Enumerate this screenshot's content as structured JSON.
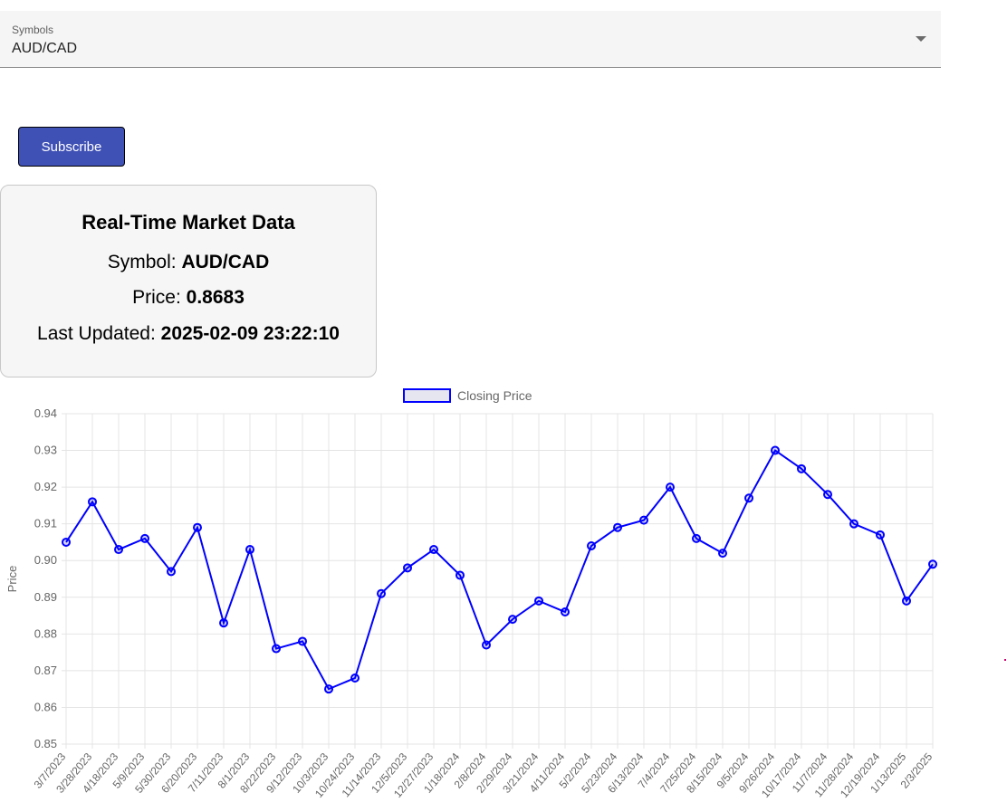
{
  "symbol_select": {
    "label": "Symbols",
    "value": "AUD/CAD"
  },
  "subscribe_label": "Subscribe",
  "market_card": {
    "title": "Real-Time Market Data",
    "symbol_label": "Symbol:",
    "symbol_value": "AUD/CAD",
    "price_label": "Price:",
    "price_value": "0.8683",
    "updated_label": "Last Updated:",
    "updated_value": "2025-02-09 23:22:10"
  },
  "colors": {
    "primary": "#3f51b5",
    "series_line": "#0000ff",
    "legend_fill": "#e6e6f0"
  },
  "chart_data": {
    "type": "line",
    "legend": "Closing Price",
    "ylabel": "Price",
    "xlabel": "",
    "ylim": [
      0.85,
      0.94
    ],
    "y_ticks": [
      "0.85",
      "0.86",
      "0.87",
      "0.88",
      "0.89",
      "0.90",
      "0.91",
      "0.92",
      "0.93",
      "0.94"
    ],
    "x_ticks": [
      "3/7/2023",
      "3/28/2023",
      "4/18/2023",
      "5/9/2023",
      "5/30/2023",
      "6/20/2023",
      "7/11/2023",
      "8/1/2023",
      "8/22/2023",
      "9/12/2023",
      "10/3/2023",
      "10/24/2023",
      "11/14/2023",
      "12/5/2023",
      "12/27/2023",
      "1/18/2024",
      "2/8/2024",
      "2/29/2024",
      "3/21/2024",
      "4/11/2024",
      "5/2/2024",
      "5/23/2024",
      "6/13/2024",
      "7/4/2024",
      "7/25/2024",
      "8/15/2024",
      "9/5/2024",
      "9/26/2024",
      "10/17/2024",
      "11/7/2024",
      "11/28/2024",
      "12/19/2024",
      "1/13/2025",
      "2/3/2025"
    ],
    "grid": true,
    "legend_position": "top",
    "series": [
      {
        "name": "Closing Price",
        "x": [
          "3/7/2023",
          "3/28/2023",
          "4/18/2023",
          "5/9/2023",
          "5/30/2023",
          "6/20/2023",
          "7/11/2023",
          "8/1/2023",
          "8/22/2023",
          "9/12/2023",
          "10/3/2023",
          "10/24/2023",
          "11/14/2023",
          "12/5/2023",
          "12/27/2023",
          "1/18/2024",
          "2/8/2024",
          "2/29/2024",
          "3/21/2024",
          "4/11/2024",
          "5/2/2024",
          "5/23/2024",
          "6/13/2024",
          "7/4/2024",
          "7/25/2024",
          "8/15/2024",
          "9/5/2024",
          "9/26/2024",
          "10/17/2024",
          "11/7/2024",
          "11/28/2024",
          "12/19/2024",
          "1/13/2025",
          "2/3/2025"
        ],
        "values": [
          0.905,
          0.916,
          0.903,
          0.906,
          0.897,
          0.909,
          0.883,
          0.903,
          0.876,
          0.878,
          0.865,
          0.868,
          0.891,
          0.898,
          0.903,
          0.896,
          0.877,
          0.884,
          0.889,
          0.886,
          0.904,
          0.909,
          0.911,
          0.92,
          0.906,
          0.902,
          0.917,
          0.93,
          0.925,
          0.918,
          0.91,
          0.907,
          0.889,
          0.899
        ]
      }
    ]
  }
}
